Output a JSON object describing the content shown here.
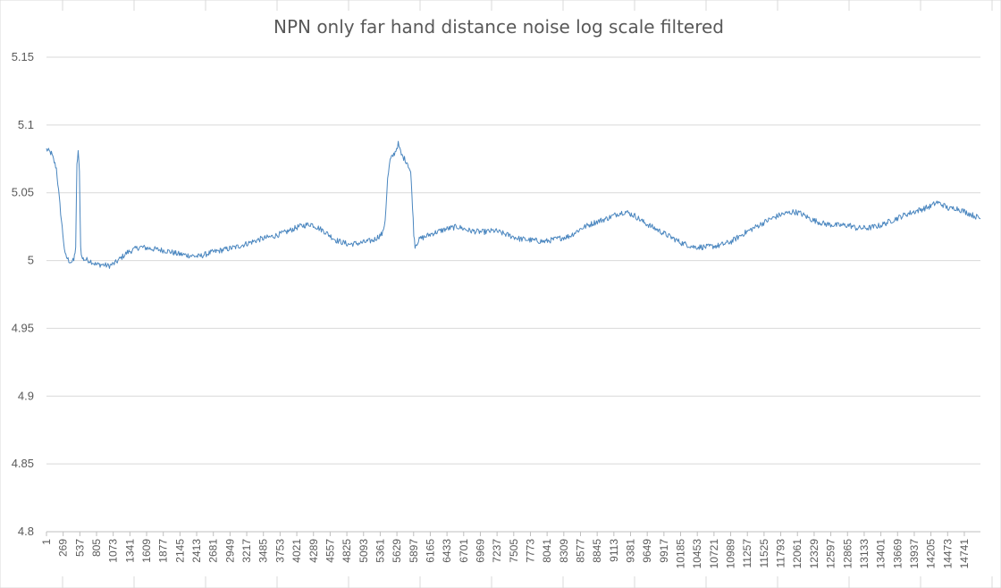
{
  "chart_data": {
    "type": "line",
    "title": "NPN only far hand distance noise log scale filtered",
    "xlabel": "",
    "ylabel": "",
    "ylim": [
      4.8,
      5.15
    ],
    "yticks": [
      "5.15",
      "5.1",
      "5.05",
      "5",
      "4.95",
      "4.9",
      "4.85",
      "4.8"
    ],
    "xlim": [
      1,
      15000
    ],
    "xticks": [
      "1",
      "269",
      "537",
      "805",
      "1073",
      "1341",
      "1609",
      "1877",
      "2145",
      "2413",
      "2681",
      "2949",
      "3217",
      "3485",
      "3753",
      "4021",
      "4289",
      "4557",
      "4825",
      "5093",
      "5361",
      "5629",
      "5897",
      "6165",
      "6433",
      "6701",
      "6969",
      "7237",
      "7505",
      "7773",
      "8041",
      "8309",
      "8577",
      "8845",
      "9113",
      "9381",
      "9649",
      "9917",
      "10185",
      "10453",
      "10721",
      "10989",
      "11257",
      "11525",
      "11793",
      "12061",
      "12329",
      "12597",
      "12865",
      "13133",
      "13401",
      "13669",
      "13937",
      "14205",
      "14473",
      "14741"
    ],
    "grid": true,
    "legend": "none",
    "series": [
      {
        "color": "#4a86bf",
        "x": [
          1,
          80,
          160,
          240,
          300,
          360,
          400,
          440,
          470,
          490,
          510,
          530,
          550,
          570,
          600,
          700,
          800,
          900,
          1000,
          1100,
          1200,
          1300,
          1400,
          1500,
          1650,
          1800,
          1950,
          2100,
          2250,
          2450,
          2650,
          2850,
          3050,
          3250,
          3450,
          3650,
          3850,
          4050,
          4250,
          4450,
          4650,
          4850,
          5050,
          5250,
          5400,
          5440,
          5480,
          5520,
          5600,
          5650,
          5700,
          5750,
          5800,
          5850,
          5880,
          5900,
          5920,
          5950,
          6000,
          6100,
          6200,
          6400,
          6600,
          6800,
          7000,
          7200,
          7400,
          7600,
          7800,
          8000,
          8200,
          8400,
          8600,
          8800,
          9000,
          9200,
          9300,
          9450,
          9600,
          9800,
          10000,
          10200,
          10400,
          10600,
          10800,
          11000,
          11200,
          11400,
          11600,
          11800,
          12000,
          12100,
          12300,
          12500,
          12700,
          12900,
          13000,
          13200,
          13400,
          13600,
          13800,
          14000,
          14200,
          14300,
          14400,
          14500,
          14600,
          14700,
          14800,
          14900,
          15000
        ],
        "y": [
          5.082,
          5.079,
          5.068,
          5.03,
          5.004,
          5.0,
          4.999,
          5.0,
          5.01,
          5.07,
          5.081,
          5.065,
          5.01,
          5.002,
          5.001,
          5.0,
          4.997,
          4.997,
          4.996,
          4.998,
          5.002,
          5.006,
          5.008,
          5.01,
          5.009,
          5.008,
          5.007,
          5.005,
          5.004,
          5.003,
          5.006,
          5.008,
          5.01,
          5.013,
          5.016,
          5.018,
          5.021,
          5.025,
          5.027,
          5.022,
          5.015,
          5.012,
          5.013,
          5.015,
          5.02,
          5.03,
          5.06,
          5.074,
          5.08,
          5.086,
          5.078,
          5.075,
          5.072,
          5.065,
          5.04,
          5.02,
          5.011,
          5.013,
          5.016,
          5.018,
          5.02,
          5.023,
          5.025,
          5.022,
          5.021,
          5.022,
          5.019,
          5.016,
          5.015,
          5.014,
          5.016,
          5.018,
          5.024,
          5.028,
          5.031,
          5.035,
          5.036,
          5.033,
          5.028,
          5.023,
          5.018,
          5.013,
          5.01,
          5.01,
          5.011,
          5.014,
          5.02,
          5.025,
          5.03,
          5.034,
          5.036,
          5.035,
          5.03,
          5.027,
          5.026,
          5.026,
          5.024,
          5.024,
          5.026,
          5.03,
          5.034,
          5.037,
          5.04,
          5.043,
          5.041,
          5.038,
          5.039,
          5.037,
          5.035,
          5.033,
          5.031
        ]
      }
    ]
  }
}
